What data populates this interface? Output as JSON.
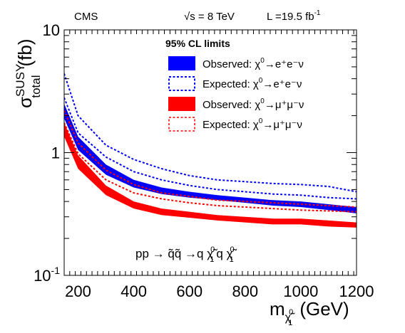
{
  "header": {
    "experiment": "CMS",
    "energy_sym": "√s",
    "energy_rest": " = 8 TeV",
    "lumi_main": "L =19.5 fb",
    "lumi_exp": "-1"
  },
  "legend": {
    "title": "95% CL limits",
    "entries": [
      {
        "main": "Observed: χ",
        "sup": "0",
        "tail": "→e⁺e⁻ν"
      },
      {
        "main": "Expected: χ",
        "sup": "0",
        "tail": "→e⁺e⁻ν"
      },
      {
        "main": "Observed: χ",
        "sup": "0",
        "tail": "→μ⁺μ⁻ν"
      },
      {
        "main": "Expected: χ",
        "sup": "0",
        "tail": "→μ⁺μ⁻ν"
      }
    ]
  },
  "process": {
    "a": "pp → ",
    "b": "q̃q̃",
    "c": " →q ",
    "d": "χ̃",
    "d_sup": "0",
    "d_sub": "1",
    "e": "q ",
    "f": "χ̃",
    "f_sup": "0",
    "f_sub": "1"
  },
  "axes": {
    "y_sigma": "σ",
    "y_sup": "SUSY",
    "y_sub": "total",
    "y_unit": "(fb)",
    "x_m": "m",
    "x_sub": "χ̃",
    "x_subsub": "0",
    "x_subsub2": "1",
    "x_unit": "(GeV)"
  },
  "chart_data": {
    "type": "area",
    "title": "",
    "xlabel": "m_χ̃⁰₁ (GeV)",
    "ylabel": "σ_total^SUSY (fb)",
    "x_range": [
      150,
      1200
    ],
    "y_range": [
      0.1,
      10
    ],
    "y_scale": "log",
    "x_ticks": [
      200,
      400,
      600,
      800,
      1000,
      1200
    ],
    "x_tick_labels": [
      "200",
      "400",
      "600",
      "800",
      "1000",
      "1200"
    ],
    "y_ticks": [
      0.1,
      1,
      10
    ],
    "y_tick_labels": [
      {
        "base": "10",
        "exp": "-1"
      },
      {
        "base": "1",
        "exp": ""
      },
      {
        "base": "10",
        "exp": ""
      }
    ],
    "legend_position": "top-right",
    "grid": false,
    "colors": {
      "electron": "#0000ff",
      "muon": "#ff0000"
    },
    "x": [
      150,
      200,
      300,
      400,
      500,
      600,
      700,
      800,
      900,
      1000,
      1100,
      1200
    ],
    "series": [
      {
        "name": "Observed: χ⁰→e⁺e⁻ν",
        "style": "filled-band",
        "color": "#0000ff",
        "upper": [
          2.5,
          1.35,
          0.8,
          0.6,
          0.52,
          0.48,
          0.45,
          0.43,
          0.41,
          0.4,
          0.38,
          0.36
        ],
        "lower": [
          1.9,
          1.05,
          0.66,
          0.52,
          0.46,
          0.43,
          0.41,
          0.39,
          0.37,
          0.36,
          0.34,
          0.32
        ]
      },
      {
        "name": "Expected: χ⁰→e⁺e⁻ν",
        "style": "dashed-band",
        "color": "#0000ff",
        "upper": [
          4.4,
          2.0,
          1.15,
          0.88,
          0.74,
          0.65,
          0.6,
          0.58,
          0.56,
          0.55,
          0.53,
          0.48
        ],
        "lower": [
          2.8,
          1.45,
          0.92,
          0.7,
          0.6,
          0.54,
          0.5,
          0.48,
          0.46,
          0.45,
          0.43,
          0.42
        ]
      },
      {
        "name": "Observed: χ⁰→μ⁺μ⁻ν",
        "style": "filled-band",
        "color": "#ff0000",
        "upper": [
          1.75,
          0.95,
          0.54,
          0.4,
          0.35,
          0.33,
          0.31,
          0.3,
          0.29,
          0.29,
          0.28,
          0.27
        ],
        "lower": [
          1.35,
          0.74,
          0.45,
          0.35,
          0.31,
          0.295,
          0.28,
          0.27,
          0.26,
          0.26,
          0.25,
          0.245
        ]
      },
      {
        "name": "Expected: χ⁰→μ⁺μ⁻ν",
        "style": "dashed-band",
        "color": "#ff0000",
        "upper": [
          2.2,
          1.2,
          0.72,
          0.55,
          0.47,
          0.44,
          0.41,
          0.4,
          0.39,
          0.38,
          0.37,
          0.36
        ],
        "lower": [
          1.75,
          0.98,
          0.6,
          0.47,
          0.42,
          0.39,
          0.37,
          0.36,
          0.35,
          0.34,
          0.335,
          0.33
        ]
      }
    ]
  }
}
